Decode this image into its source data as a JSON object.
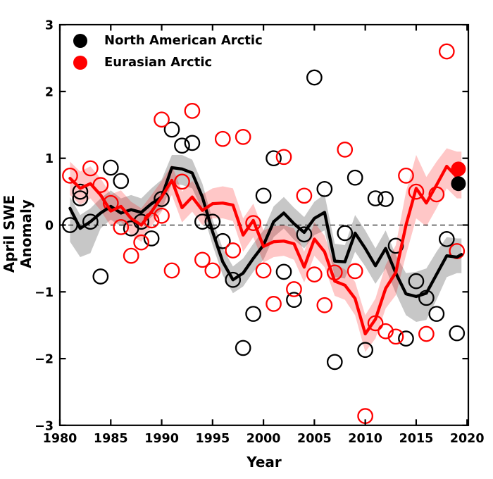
{
  "chart_data": {
    "type": "line",
    "title": "",
    "xlabel": "Year",
    "ylabel": "April SWE Anomaly",
    "xlim": [
      1980,
      2020.2
    ],
    "ylim": [
      -3,
      3
    ],
    "xticks": [
      1980,
      1985,
      1990,
      1995,
      2000,
      2005,
      2010,
      2015,
      2020
    ],
    "yticks": [
      3,
      2,
      1,
      0,
      -1,
      -2,
      -3
    ],
    "ytick_labels": [
      "3",
      "2",
      "1",
      "0",
      "−1",
      "−2",
      "−3"
    ],
    "grid": false,
    "zero_line": {
      "value": 0,
      "style": "dashed",
      "color": "#1a1a1a"
    },
    "legend_position": "upper left",
    "legend": [
      {
        "label": "North American Arctic",
        "color": "#000000"
      },
      {
        "label": "Eurasian Arctic",
        "color": "#ff0000"
      }
    ],
    "years": [
      1981,
      1982,
      1983,
      1984,
      1985,
      1986,
      1987,
      1988,
      1989,
      1990,
      1991,
      1992,
      1993,
      1994,
      1995,
      1996,
      1997,
      1998,
      1999,
      2000,
      2001,
      2002,
      2003,
      2004,
      2005,
      2006,
      2007,
      2008,
      2009,
      2010,
      2011,
      2012,
      2013,
      2014,
      2015,
      2016,
      2017,
      2018,
      2019
    ],
    "series": [
      {
        "name": "North American Arctic",
        "color": "#000000",
        "band_color": "#000000",
        "band_opacity": 0.22,
        "line": [
          0.25,
          -0.05,
          0.05,
          0.18,
          0.28,
          0.18,
          0.23,
          0.19,
          0.32,
          0.42,
          0.86,
          0.84,
          0.78,
          0.42,
          -0.1,
          -0.55,
          -0.82,
          -0.72,
          -0.5,
          -0.3,
          0.05,
          0.18,
          0.02,
          -0.11,
          0.1,
          0.19,
          -0.54,
          -0.55,
          -0.12,
          -0.35,
          -0.61,
          -0.35,
          -0.72,
          -1.03,
          -1.07,
          -1.02,
          -0.74,
          -0.46,
          -0.48
        ],
        "band_lo": [
          -0.25,
          -0.48,
          -0.42,
          -0.05,
          0.08,
          -0.02,
          0.03,
          -0.02,
          0.12,
          0.22,
          0.62,
          0.6,
          0.55,
          0.22,
          -0.3,
          -0.75,
          -1.02,
          -0.92,
          -0.7,
          -0.52,
          -0.18,
          -0.05,
          -0.22,
          -0.35,
          -0.15,
          -0.08,
          -0.78,
          -0.8,
          -0.4,
          -0.62,
          -0.88,
          -0.65,
          -1.02,
          -1.35,
          -1.45,
          -1.42,
          -1.12,
          -0.78,
          -0.72
        ],
        "band_hi": [
          0.42,
          0.15,
          0.25,
          0.4,
          0.52,
          0.4,
          0.45,
          0.4,
          0.55,
          0.68,
          1.05,
          1.05,
          0.98,
          0.62,
          0.08,
          -0.35,
          -0.62,
          -0.5,
          -0.28,
          -0.08,
          0.28,
          0.42,
          0.26,
          0.12,
          0.35,
          0.46,
          -0.28,
          -0.3,
          0.15,
          -0.08,
          -0.35,
          -0.08,
          -0.45,
          -0.72,
          -0.7,
          -0.65,
          -0.4,
          -0.18,
          -0.2
        ],
        "line_end": {
          "year": 2019.45,
          "value": -0.44
        },
        "scatter": [
          [
            1981,
            0.0
          ],
          [
            1982,
            0.5
          ],
          [
            1982,
            0.4
          ],
          [
            1983,
            0.05
          ],
          [
            1984,
            -0.77
          ],
          [
            1985,
            0.86
          ],
          [
            1986,
            0.66
          ],
          [
            1987,
            -0.05
          ],
          [
            1988,
            0.05
          ],
          [
            1989,
            -0.2
          ],
          [
            1990,
            0.39
          ],
          [
            1991,
            1.43
          ],
          [
            1992,
            1.19
          ],
          [
            1993,
            1.23
          ],
          [
            1994,
            0.05
          ],
          [
            1995,
            0.05
          ],
          [
            1996,
            -0.24
          ],
          [
            1997,
            -0.82
          ],
          [
            1998,
            -1.84
          ],
          [
            1999,
            -1.33
          ],
          [
            2000,
            0.44
          ],
          [
            2001,
            1.0
          ],
          [
            2002,
            -0.7
          ],
          [
            2003,
            -1.12
          ],
          [
            2004,
            -0.14
          ],
          [
            2005,
            2.21
          ],
          [
            2006,
            0.54
          ],
          [
            2007,
            -2.05
          ],
          [
            2008,
            -0.12
          ],
          [
            2009,
            0.71
          ],
          [
            2010,
            -1.87
          ],
          [
            2011,
            0.4
          ],
          [
            2012,
            0.39
          ],
          [
            2013,
            -0.31
          ],
          [
            2014,
            -1.7
          ],
          [
            2015,
            -0.84
          ],
          [
            2016,
            -1.09
          ],
          [
            2017,
            -1.33
          ],
          [
            2018,
            -0.21
          ],
          [
            2019,
            -1.62
          ]
        ],
        "filled_dot": {
          "year": 2019.15,
          "value": 0.62
        }
      },
      {
        "name": "Eurasian Arctic",
        "color": "#ff0000",
        "band_color": "#ff0000",
        "band_opacity": 0.22,
        "line": [
          0.7,
          0.55,
          0.62,
          0.45,
          0.21,
          0.28,
          0.1,
          0.0,
          0.2,
          0.42,
          0.67,
          0.26,
          0.42,
          0.22,
          0.32,
          0.33,
          0.3,
          -0.15,
          0.07,
          -0.32,
          -0.25,
          -0.24,
          -0.28,
          -0.63,
          -0.21,
          -0.4,
          -0.84,
          -0.9,
          -1.1,
          -1.63,
          -1.41,
          -0.95,
          -0.71,
          0.0,
          0.55,
          0.33,
          0.6,
          0.88,
          0.72
        ],
        "band_lo": [
          0.45,
          0.3,
          0.4,
          0.22,
          -0.02,
          0.05,
          -0.15,
          -0.25,
          -0.02,
          0.2,
          0.45,
          0.04,
          0.2,
          0.0,
          0.1,
          0.1,
          0.06,
          -0.4,
          -0.18,
          -0.56,
          -0.48,
          -0.46,
          -0.52,
          -0.86,
          -0.46,
          -0.63,
          -1.06,
          -1.12,
          -1.35,
          -1.9,
          -1.7,
          -1.25,
          -1.05,
          -0.45,
          0.1,
          -0.02,
          0.25,
          0.55,
          0.4
        ],
        "band_hi": [
          0.95,
          0.8,
          0.88,
          0.7,
          0.46,
          0.52,
          0.35,
          0.25,
          0.45,
          0.66,
          0.9,
          0.5,
          0.66,
          0.46,
          0.55,
          0.58,
          0.55,
          0.1,
          0.32,
          -0.08,
          -0.02,
          0.0,
          -0.05,
          -0.4,
          0.04,
          -0.16,
          -0.6,
          -0.66,
          -0.85,
          -1.35,
          -1.1,
          -0.6,
          -0.3,
          0.5,
          1.05,
          0.72,
          0.95,
          1.15,
          1.1
        ],
        "line_end": {
          "year": 2019.45,
          "value": 0.8
        },
        "scatter": [
          [
            1981,
            0.74
          ],
          [
            1983,
            0.85
          ],
          [
            1984,
            0.6
          ],
          [
            1985,
            0.33
          ],
          [
            1986,
            -0.03
          ],
          [
            1987,
            -0.46
          ],
          [
            1988,
            -0.26
          ],
          [
            1989,
            0.07
          ],
          [
            1990,
            1.58
          ],
          [
            1990,
            0.14
          ],
          [
            1991,
            -0.68
          ],
          [
            1992,
            0.65
          ],
          [
            1993,
            1.71
          ],
          [
            1994,
            -0.52
          ],
          [
            1995,
            -0.68
          ],
          [
            1996,
            1.29
          ],
          [
            1997,
            -0.38
          ],
          [
            1998,
            1.32
          ],
          [
            1999,
            0.03
          ],
          [
            2000,
            -0.68
          ],
          [
            2001,
            -1.18
          ],
          [
            2002,
            1.02
          ],
          [
            2003,
            -0.96
          ],
          [
            2004,
            0.44
          ],
          [
            2005,
            -0.74
          ],
          [
            2006,
            -1.2
          ],
          [
            2007,
            -0.71
          ],
          [
            2008,
            1.13
          ],
          [
            2009,
            -0.69
          ],
          [
            2010,
            -2.86
          ],
          [
            2011,
            -1.47
          ],
          [
            2012,
            -1.59
          ],
          [
            2013,
            -1.67
          ],
          [
            2014,
            0.74
          ],
          [
            2015,
            0.5
          ],
          [
            2016,
            -1.63
          ],
          [
            2017,
            0.46
          ],
          [
            2018,
            2.6
          ],
          [
            2019,
            -0.39
          ]
        ],
        "filled_dot": {
          "year": 2019.15,
          "value": 0.84
        }
      }
    ]
  }
}
